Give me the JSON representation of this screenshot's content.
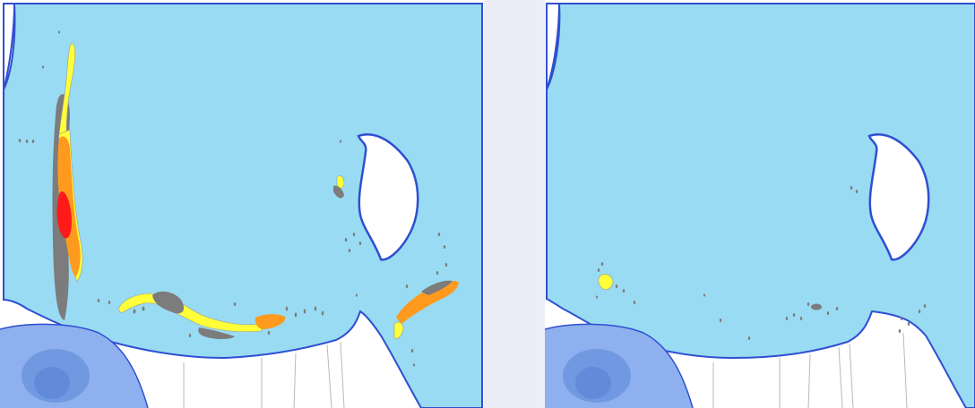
{
  "colors": {
    "water": "#99dbf2",
    "shore": "#2f4fd1",
    "land": "#ffffff",
    "deep_blue": "#8eb0ee",
    "deep_blue_core": "#6a93df",
    "gray": "#7c7c7c",
    "yellow": "#ffff3a",
    "orange": "#ff9a1f",
    "red": "#ff1a1a",
    "background": "#efeff9"
  },
  "legend_classes": [
    "gray",
    "yellow",
    "orange",
    "red"
  ]
}
